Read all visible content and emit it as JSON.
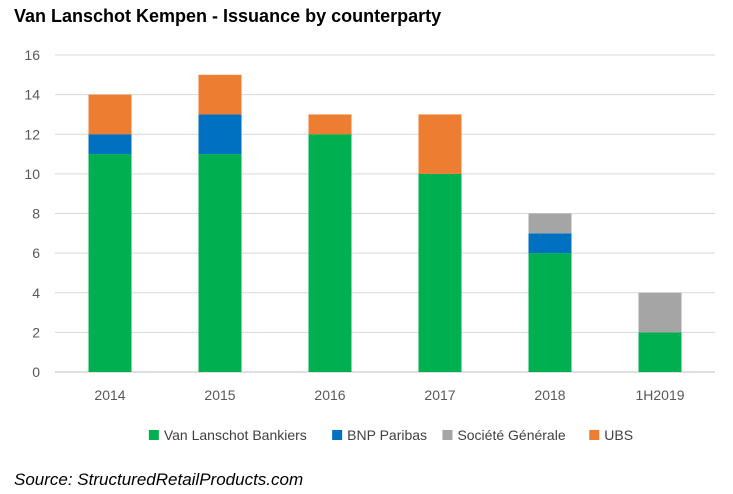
{
  "chart_data": {
    "type": "bar",
    "stacked": true,
    "title": "Van Lanschot Kempen - Issuance by counterparty",
    "xlabel": "",
    "ylabel": "",
    "ylim": [
      0,
      16
    ],
    "yticks": [
      0,
      2,
      4,
      6,
      8,
      10,
      12,
      14,
      16
    ],
    "grid": true,
    "legend_position": "bottom",
    "categories": [
      "2014",
      "2015",
      "2016",
      "2017",
      "2018",
      "1H2019"
    ],
    "series": [
      {
        "name": "Van Lanschot Bankiers",
        "color": "#00B050",
        "values": [
          11,
          11,
          12,
          10,
          6,
          2
        ]
      },
      {
        "name": "BNP Paribas",
        "color": "#0070C0",
        "values": [
          1,
          2,
          0,
          0,
          1,
          0
        ]
      },
      {
        "name": "Société Générale",
        "color": "#A5A5A5",
        "values": [
          0,
          0,
          0,
          0,
          1,
          2
        ]
      },
      {
        "name": "UBS",
        "color": "#ED7D31",
        "values": [
          2,
          2,
          1,
          3,
          0,
          0
        ]
      }
    ]
  },
  "source": "Source: StructuredRetailProducts.com"
}
